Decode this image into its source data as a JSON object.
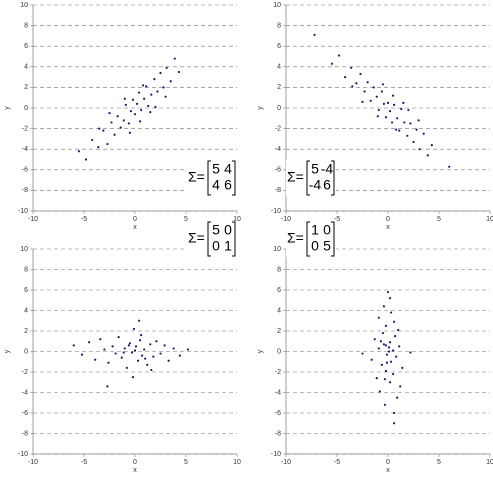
{
  "chart_data": [
    {
      "type": "scatter",
      "xlabel": "x",
      "ylabel": "y",
      "color": "#1a1a6e",
      "grid": true,
      "xlim": [
        -10,
        10
      ],
      "xticks": [
        -10,
        -5,
        0,
        5,
        10
      ],
      "ylim": [
        -10,
        10
      ],
      "yticks": [
        -10,
        -8,
        -6,
        -4,
        -2,
        0,
        2,
        4,
        6,
        8,
        10
      ],
      "annotation": {
        "symbol": "Σ=",
        "matrix": [
          [
            5,
            4
          ],
          [
            4,
            6
          ]
        ]
      },
      "x": [
        -5.5,
        -4.8,
        -4.2,
        -3.6,
        -3.1,
        -2.7,
        -2.3,
        -2,
        -1.7,
        -1.4,
        -1.1,
        -0.9,
        -0.6,
        -0.4,
        -0.2,
        0,
        0.2,
        0.4,
        0.6,
        0.9,
        1.1,
        1.3,
        1.6,
        1.9,
        2.2,
        2.5,
        2.8,
        3.1,
        3.5,
        3.9,
        4.3,
        -1,
        0.5,
        1.5,
        -2.5,
        2,
        -0.5,
        3,
        0.8,
        -3.5
      ],
      "y": [
        -4.2,
        -5,
        -3.1,
        -3.8,
        -2.2,
        -3.5,
        -1.4,
        -2.6,
        -0.8,
        -1.9,
        -1.2,
        0.3,
        -1.5,
        -0.3,
        0.8,
        -0.6,
        0.4,
        1.5,
        -0.2,
        0.9,
        2.1,
        0.2,
        1.3,
        2.8,
        1.6,
        3.4,
        2,
        3.9,
        2.6,
        4.8,
        3.5,
        0.9,
        -1.3,
        -0.4,
        -0.5,
        0.1,
        -2.4,
        1.1,
        2.2,
        -2
      ]
    },
    {
      "type": "scatter",
      "xlabel": "x",
      "ylabel": "y",
      "color": "#1a1a6e",
      "grid": true,
      "xlim": [
        -10,
        10
      ],
      "xticks": [
        -10,
        -5,
        0,
        5,
        10
      ],
      "ylim": [
        -10,
        10
      ],
      "yticks": [
        -10,
        -8,
        -6,
        -4,
        -2,
        0,
        2,
        4,
        6,
        8,
        10
      ],
      "annotation": {
        "symbol": "Σ=",
        "matrix": [
          [
            5,
            -4
          ],
          [
            -4,
            6
          ]
        ]
      },
      "x": [
        -5.5,
        -4.8,
        -4.2,
        -3.6,
        -3.1,
        -2.7,
        -2.3,
        -2,
        -1.7,
        -1.4,
        -1.1,
        -0.9,
        -0.6,
        -0.4,
        -0.2,
        0,
        0.2,
        0.4,
        0.6,
        0.9,
        1.1,
        1.3,
        1.6,
        1.9,
        2.2,
        2.5,
        2.8,
        3.1,
        3.5,
        3.9,
        4.3,
        -1,
        0.5,
        1.5,
        -2.5,
        2,
        -0.5,
        3,
        0.8,
        -3.5,
        -7.2,
        6
      ],
      "y": [
        4.3,
        5.1,
        3,
        3.9,
        2.4,
        3.3,
        1.6,
        2.5,
        0.7,
        2,
        1.1,
        -0.2,
        1.6,
        0.4,
        -0.9,
        0.5,
        -0.3,
        -1.4,
        0.3,
        -1,
        -2.2,
        -0.1,
        -1.4,
        -2.7,
        -1.5,
        -3.3,
        -2.1,
        -4,
        -2.5,
        -4.6,
        -3.6,
        -0.8,
        1.2,
        0.5,
        0.6,
        -0.2,
        2.3,
        -1.2,
        -2.1,
        2.1,
        7.1,
        -5.7
      ]
    },
    {
      "type": "scatter",
      "xlabel": "x",
      "ylabel": "y",
      "color": "#1a1a6e",
      "grid": true,
      "xlim": [
        -10,
        10
      ],
      "xticks": [
        -10,
        -5,
        0,
        5,
        10
      ],
      "ylim": [
        -10,
        10
      ],
      "yticks": [
        -10,
        -8,
        -6,
        -4,
        -2,
        0,
        2,
        4,
        6,
        8,
        10
      ],
      "annotation": {
        "symbol": "Σ=",
        "matrix": [
          [
            5,
            0
          ],
          [
            0,
            1
          ]
        ]
      },
      "x": [
        -6,
        -5.2,
        -4.5,
        -3.9,
        -3.4,
        -3,
        -2.6,
        -2.2,
        -1.9,
        -1.6,
        -1.3,
        -1,
        -0.8,
        -0.5,
        -0.3,
        -0.1,
        0.1,
        0.3,
        0.5,
        0.7,
        0.9,
        1.2,
        1.5,
        1.8,
        2.1,
        2.5,
        2.9,
        3.3,
        3.8,
        4.4,
        5.2,
        -0.2,
        0.4,
        -1.1,
        1,
        -2.7,
        0,
        0.6,
        -0.6,
        1.6
      ],
      "y": [
        0.6,
        -0.3,
        0.9,
        -0.8,
        1.2,
        0.2,
        -1.1,
        0.5,
        -0.2,
        1.4,
        -0.6,
        0.3,
        -1.6,
        0.8,
        -0.1,
        2.2,
        0.5,
        -0.9,
        1.1,
        -0.4,
        0.2,
        -1.3,
        0.7,
        -0.5,
        1,
        -0.2,
        0.6,
        -0.9,
        0.3,
        -0.4,
        0.2,
        -2.5,
        3,
        -0.1,
        -0.7,
        -3.4,
        0.1,
        1.6,
        0.6,
        -1.8
      ]
    },
    {
      "type": "scatter",
      "xlabel": "x",
      "ylabel": "y",
      "color": "#1a1a6e",
      "grid": true,
      "xlim": [
        -10,
        10
      ],
      "xticks": [
        -10,
        -5,
        0,
        5,
        10
      ],
      "ylim": [
        -10,
        10
      ],
      "yticks": [
        -10,
        -8,
        -6,
        -4,
        -2,
        0,
        2,
        4,
        6,
        8,
        10
      ],
      "annotation": {
        "symbol": "Σ=",
        "matrix": [
          [
            1,
            0
          ],
          [
            0,
            5
          ]
        ]
      },
      "x": [
        0.6,
        -0.3,
        0.9,
        -0.8,
        1.2,
        0.2,
        -1.1,
        0.5,
        -0.2,
        1.4,
        -0.6,
        0.3,
        -1.6,
        0.8,
        -0.1,
        2.2,
        0.5,
        -0.9,
        1.1,
        -0.4,
        0.2,
        -1.3,
        0.7,
        -0.5,
        1,
        -0.2,
        0.6,
        -0.9,
        0.3,
        -0.4,
        0.2,
        -2.5,
        0.1,
        -0.1,
        -0.7,
        -0.3,
        0.1,
        -0.2,
        0.6,
        0
      ],
      "y": [
        -6,
        -5.2,
        -4.5,
        -3.9,
        -3.4,
        -3,
        -2.6,
        -2.2,
        -1.9,
        -1.6,
        -1.3,
        -1,
        -0.8,
        -0.5,
        -0.3,
        -0.1,
        0.1,
        0.3,
        0.5,
        0.7,
        0.9,
        1.2,
        1.5,
        1.8,
        2.1,
        2.5,
        2.9,
        3.3,
        3.8,
        4.4,
        5.2,
        -0.2,
        0.4,
        -1.1,
        1,
        -2.7,
        0,
        0.6,
        -7,
        5.8
      ]
    }
  ]
}
